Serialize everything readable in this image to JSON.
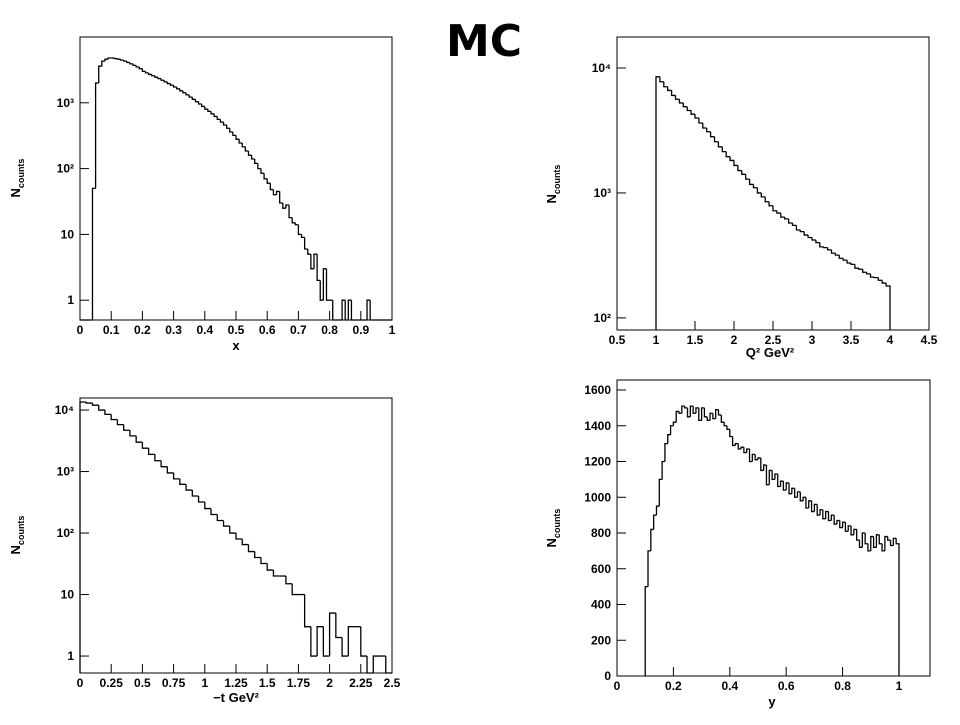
{
  "title": "MC",
  "chart_data": [
    {
      "type": "histogram",
      "xlabel": "x",
      "ylabel": "N",
      "ylabel_sub": "counts",
      "log_y": true,
      "color": "#000000",
      "xlim": [
        0,
        1
      ],
      "ylim": [
        0.5,
        10000
      ],
      "xticks": [
        0,
        0.1,
        0.2,
        0.3,
        0.4,
        0.5,
        0.6,
        0.7,
        0.8,
        0.9,
        1
      ],
      "yticks": [
        1,
        10,
        {
          "value": 100,
          "label": "10²"
        },
        {
          "value": 1000,
          "label": "10³"
        }
      ],
      "bins": [
        0,
        0.01,
        0.02,
        0.03,
        0.04,
        0.05,
        0.06,
        0.07,
        0.08,
        0.09,
        0.1,
        0.11,
        0.12,
        0.13,
        0.14,
        0.15,
        0.16,
        0.17,
        0.18,
        0.19,
        0.2,
        0.21,
        0.22,
        0.23,
        0.24,
        0.25,
        0.26,
        0.27,
        0.28,
        0.29,
        0.3,
        0.31,
        0.32,
        0.33,
        0.34,
        0.35,
        0.36,
        0.37,
        0.38,
        0.39,
        0.4,
        0.41,
        0.42,
        0.43,
        0.44,
        0.45,
        0.46,
        0.47,
        0.48,
        0.49,
        0.5,
        0.51,
        0.52,
        0.53,
        0.54,
        0.55,
        0.56,
        0.57,
        0.58,
        0.59,
        0.6,
        0.61,
        0.62,
        0.63,
        0.64,
        0.65,
        0.66,
        0.67,
        0.68,
        0.69,
        0.7,
        0.71,
        0.72,
        0.73,
        0.74,
        0.75,
        0.76,
        0.77,
        0.78,
        0.79,
        0.8,
        0.81,
        0.82,
        0.83,
        0.84,
        0.85,
        0.86,
        0.87,
        0.88,
        0.89,
        0.9,
        0.91,
        0.92,
        0.93,
        0.94,
        0.95,
        0.96,
        0.97,
        0.98,
        0.99,
        1
      ],
      "values": [
        0,
        0,
        0,
        0,
        50,
        2000,
        3600,
        4300,
        4600,
        4800,
        4800,
        4700,
        4600,
        4450,
        4300,
        4100,
        3900,
        3700,
        3500,
        3300,
        3000,
        2850,
        2700,
        2580,
        2450,
        2330,
        2200,
        2080,
        1960,
        1850,
        1740,
        1630,
        1520,
        1420,
        1320,
        1220,
        1130,
        1040,
        960,
        880,
        800,
        740,
        680,
        620,
        560,
        510,
        460,
        410,
        360,
        320,
        280,
        245,
        215,
        185,
        160,
        140,
        120,
        100,
        85,
        70,
        60,
        48,
        40,
        45,
        30,
        25,
        28,
        18,
        15,
        14,
        10,
        9,
        6,
        5,
        3,
        5,
        2,
        1,
        3,
        1,
        1,
        0,
        0,
        0,
        1,
        0,
        1,
        0,
        0,
        0,
        0,
        0,
        1,
        0,
        0,
        0,
        0,
        0,
        0,
        0
      ]
    },
    {
      "type": "histogram",
      "xlabel": "Q² GeV²",
      "ylabel": "N",
      "ylabel_sub": "counts",
      "log_y": true,
      "color": "#000000",
      "xlim": [
        0.5,
        4.5
      ],
      "ylim": [
        80,
        17700
      ],
      "xticks": [
        0.5,
        1,
        1.5,
        2,
        2.5,
        3,
        3.5,
        4,
        4.5
      ],
      "yticks": [
        {
          "value": 100,
          "label": "10²"
        },
        {
          "value": 1000,
          "label": "10³"
        },
        {
          "value": 10000,
          "label": "10⁴"
        }
      ],
      "bins": [
        1,
        1.05,
        1.1,
        1.15,
        1.2,
        1.25,
        1.3,
        1.35,
        1.4,
        1.45,
        1.5,
        1.55,
        1.6,
        1.65,
        1.7,
        1.75,
        1.8,
        1.85,
        1.9,
        1.95,
        2,
        2.05,
        2.1,
        2.15,
        2.2,
        2.25,
        2.3,
        2.35,
        2.4,
        2.45,
        2.5,
        2.55,
        2.6,
        2.65,
        2.7,
        2.75,
        2.8,
        2.85,
        2.9,
        2.95,
        3,
        3.05,
        3.1,
        3.15,
        3.2,
        3.25,
        3.3,
        3.35,
        3.4,
        3.45,
        3.5,
        3.55,
        3.6,
        3.65,
        3.7,
        3.75,
        3.8,
        3.85,
        3.9,
        3.95,
        4
      ],
      "values": [
        8500,
        7760,
        7080,
        6610,
        6030,
        5620,
        5250,
        4900,
        4570,
        4270,
        3980,
        3630,
        3310,
        3090,
        2820,
        2570,
        2340,
        2140,
        1950,
        1820,
        1660,
        1510,
        1410,
        1290,
        1170,
        1100,
        1000,
        930,
        850,
        790,
        720,
        690,
        640,
        620,
        575,
        550,
        505,
        490,
        460,
        440,
        420,
        400,
        370,
        365,
        350,
        330,
        318,
        300,
        290,
        275,
        268,
        250,
        245,
        232,
        225,
        212,
        210,
        200,
        190,
        180
      ]
    },
    {
      "type": "histogram",
      "xlabel": "−t  GeV²",
      "ylabel": "N",
      "ylabel_sub": "counts",
      "log_y": true,
      "color": "#000000",
      "xlim": [
        0,
        2.5
      ],
      "ylim": [
        0.53,
        15700
      ],
      "xticks": [
        0,
        0.25,
        0.5,
        0.75,
        1,
        1.25,
        1.5,
        1.75,
        2,
        2.25,
        2.5
      ],
      "yticks": [
        1,
        10,
        {
          "value": 100,
          "label": "10²"
        },
        {
          "value": 1000,
          "label": "10³"
        },
        {
          "value": 10000,
          "label": "10⁴"
        }
      ],
      "bins": [
        0,
        0.05,
        0.1,
        0.15,
        0.2,
        0.25,
        0.3,
        0.35,
        0.4,
        0.45,
        0.5,
        0.55,
        0.6,
        0.65,
        0.7,
        0.75,
        0.8,
        0.85,
        0.9,
        0.95,
        1,
        1.05,
        1.1,
        1.15,
        1.2,
        1.25,
        1.3,
        1.35,
        1.4,
        1.45,
        1.5,
        1.55,
        1.6,
        1.65,
        1.7,
        1.75,
        1.8,
        1.85,
        1.9,
        1.95,
        2,
        2.05,
        2.1,
        2.15,
        2.2,
        2.25,
        2.3,
        2.35,
        2.4,
        2.45,
        2.5
      ],
      "values": [
        13500,
        13000,
        12000,
        10000,
        8500,
        7000,
        5800,
        4700,
        3800,
        3000,
        2400,
        1900,
        1500,
        1200,
        950,
        760,
        620,
        500,
        400,
        320,
        250,
        200,
        160,
        130,
        100,
        80,
        65,
        50,
        40,
        32,
        25,
        20,
        20,
        15,
        10,
        10,
        3,
        1,
        3,
        1,
        5,
        2,
        1,
        3,
        3,
        1,
        0,
        1,
        1,
        0
      ]
    },
    {
      "type": "histogram",
      "xlabel": "y",
      "ylabel": "N",
      "ylabel_sub": "counts",
      "log_y": false,
      "color": "#000000",
      "xlim": [
        0,
        1.11
      ],
      "ylim": [
        0,
        1656
      ],
      "xticks": [
        0,
        0.2,
        0.4,
        0.6,
        0.8,
        1
      ],
      "yticks": [
        0,
        200,
        400,
        600,
        800,
        1000,
        1200,
        1400,
        1600
      ],
      "bins": [
        0.1,
        0.11,
        0.12,
        0.13,
        0.14,
        0.15,
        0.16,
        0.17,
        0.18,
        0.19,
        0.2,
        0.21,
        0.22,
        0.23,
        0.24,
        0.25,
        0.26,
        0.27,
        0.28,
        0.29,
        0.3,
        0.31,
        0.32,
        0.33,
        0.34,
        0.35,
        0.36,
        0.37,
        0.38,
        0.39,
        0.4,
        0.41,
        0.42,
        0.43,
        0.44,
        0.45,
        0.46,
        0.47,
        0.48,
        0.49,
        0.5,
        0.51,
        0.52,
        0.53,
        0.54,
        0.55,
        0.56,
        0.57,
        0.58,
        0.59,
        0.6,
        0.61,
        0.62,
        0.63,
        0.64,
        0.65,
        0.66,
        0.67,
        0.68,
        0.69,
        0.7,
        0.71,
        0.72,
        0.73,
        0.74,
        0.75,
        0.76,
        0.77,
        0.78,
        0.79,
        0.8,
        0.81,
        0.82,
        0.83,
        0.84,
        0.85,
        0.86,
        0.87,
        0.88,
        0.89,
        0.9,
        0.91,
        0.92,
        0.93,
        0.94,
        0.95,
        0.96,
        0.97,
        0.98,
        0.99,
        1
      ],
      "values": [
        500,
        700,
        820,
        900,
        950,
        1100,
        1200,
        1300,
        1350,
        1400,
        1420,
        1480,
        1470,
        1510,
        1500,
        1450,
        1510,
        1470,
        1500,
        1430,
        1500,
        1450,
        1430,
        1470,
        1440,
        1490,
        1460,
        1420,
        1400,
        1380,
        1340,
        1290,
        1300,
        1270,
        1280,
        1250,
        1270,
        1200,
        1240,
        1210,
        1220,
        1150,
        1180,
        1070,
        1150,
        1100,
        1130,
        1060,
        1090,
        1040,
        1080,
        1020,
        1050,
        1000,
        1030,
        980,
        1000,
        940,
        980,
        920,
        960,
        900,
        930,
        880,
        920,
        870,
        900,
        850,
        870,
        830,
        860,
        810,
        840,
        790,
        820,
        760,
        720,
        800,
        740,
        700,
        780,
        720,
        790,
        740,
        700,
        780,
        760,
        730,
        770,
        740
      ]
    }
  ]
}
